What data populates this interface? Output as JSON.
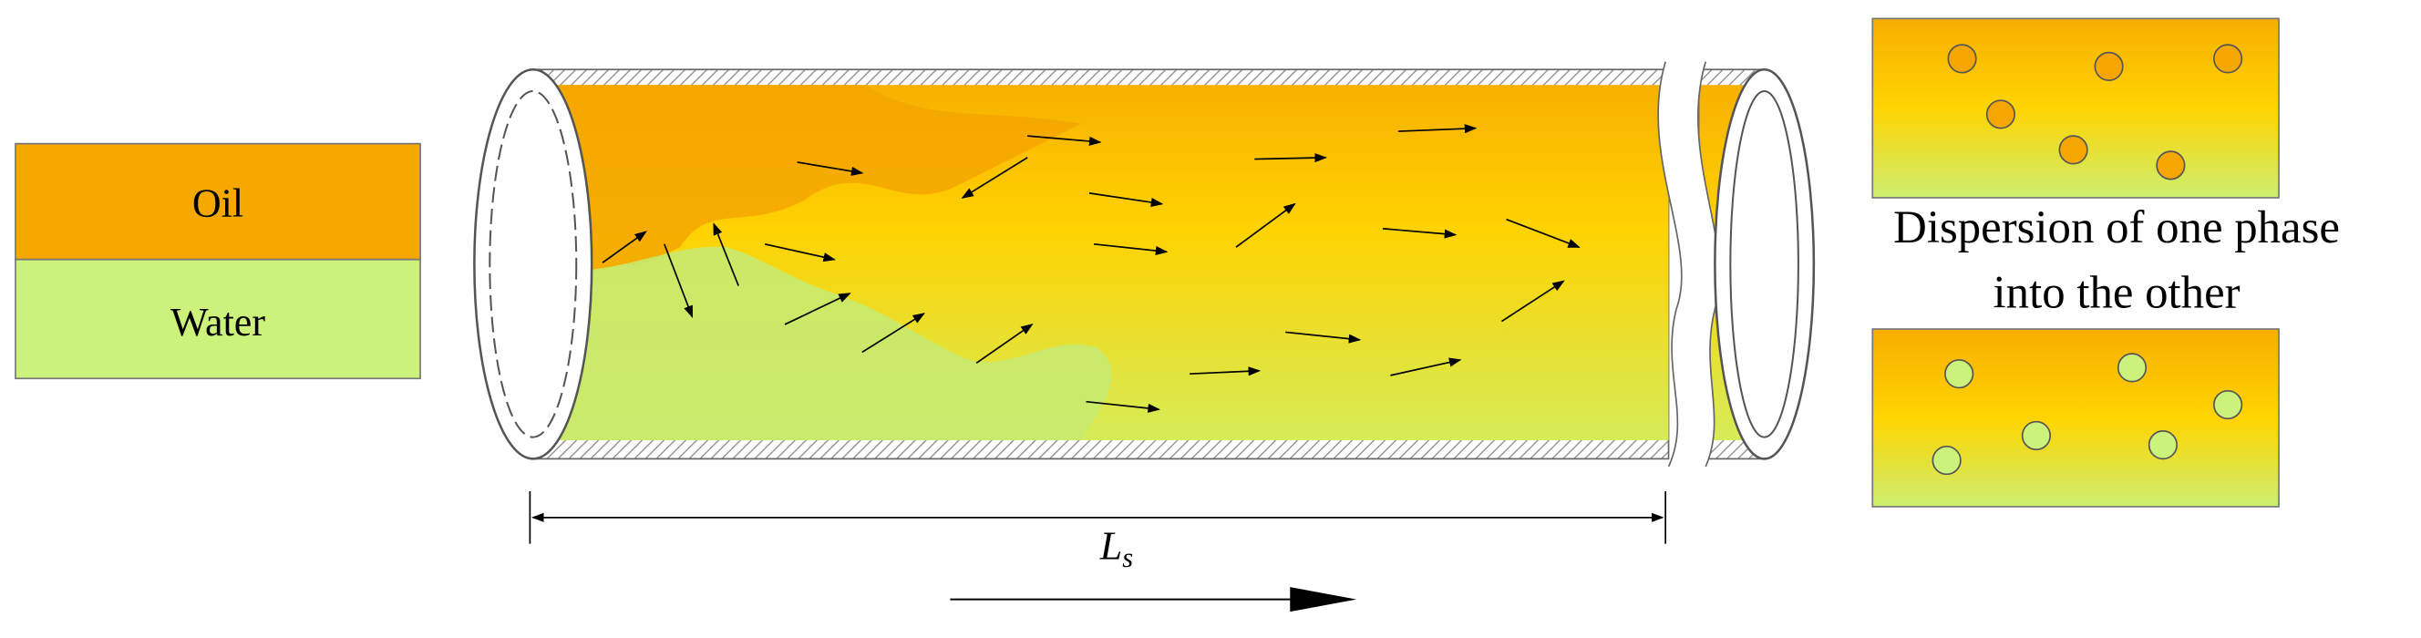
{
  "legend": {
    "oil": "Oil",
    "water": "Water"
  },
  "caption": {
    "line1": "Dispersion of one phase",
    "line2": "into the other"
  },
  "length_label": {
    "main": "L",
    "sub": "s"
  }
}
